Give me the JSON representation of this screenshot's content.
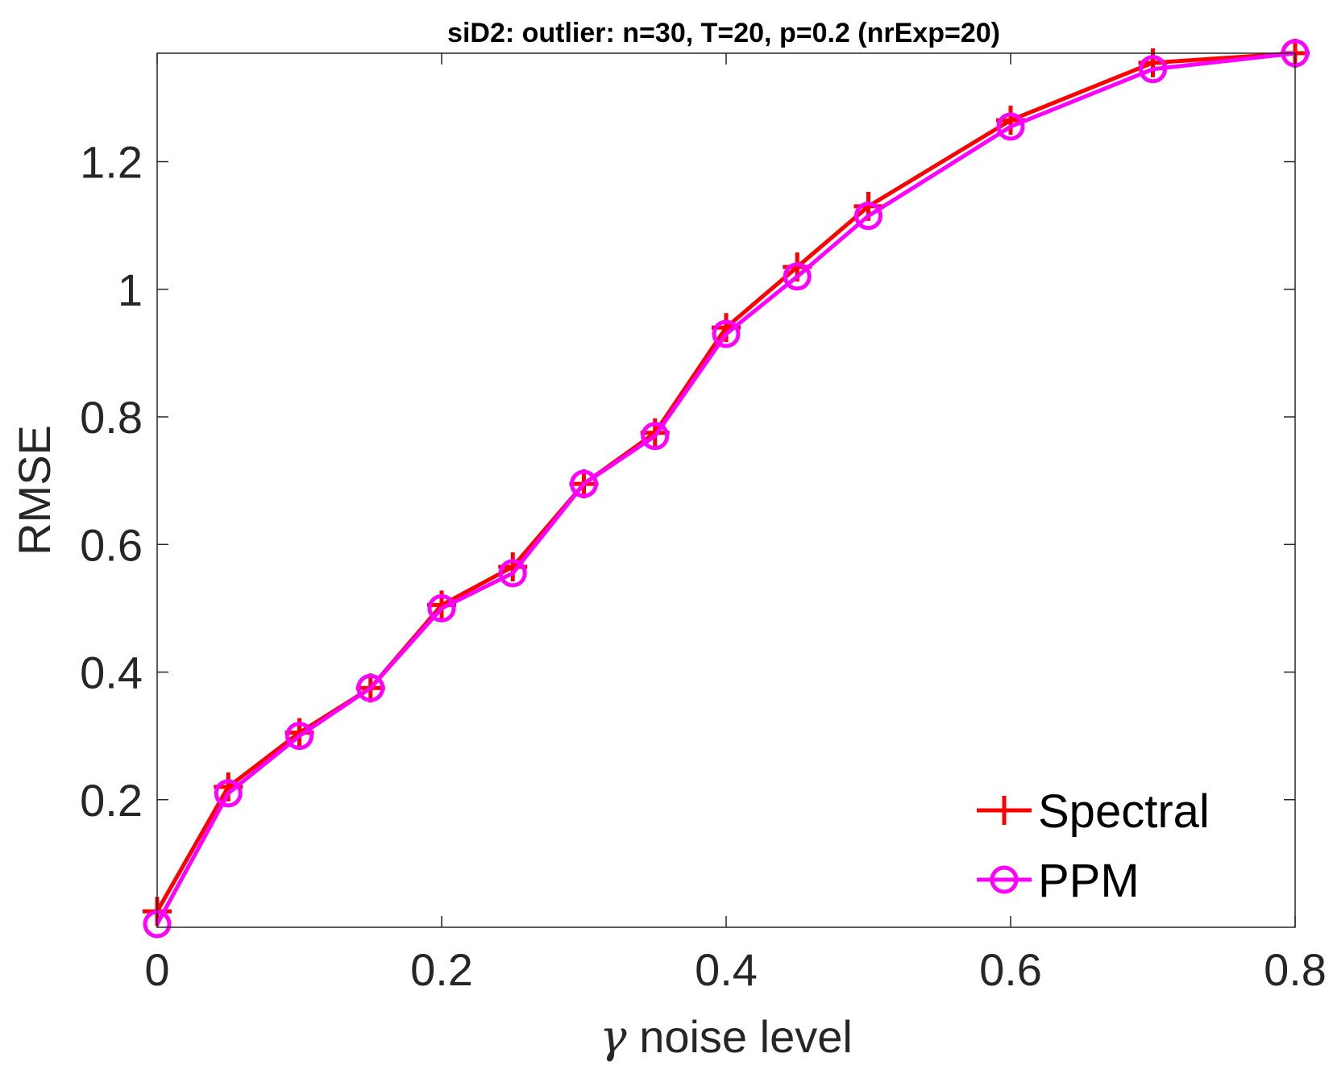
{
  "chart_data": {
    "type": "line",
    "title": "siD2: outlier: n=30, T=20, p=0.2 (nrExp=20)",
    "xlabel_symbol": "γ",
    "xlabel_text": " noise level",
    "ylabel": "RMSE",
    "xlim": [
      0,
      0.8
    ],
    "ylim": [
      0,
      1.37
    ],
    "xticks": [
      0,
      0.2,
      0.4,
      0.6,
      0.8
    ],
    "xtick_labels": [
      "0",
      "0.2",
      "0.4",
      "0.6",
      "0.8"
    ],
    "yticks": [
      0.2,
      0.4,
      0.6,
      0.8,
      1,
      1.2
    ],
    "ytick_labels": [
      "0.2",
      "0.4",
      "0.6",
      "0.8",
      "1",
      "1.2"
    ],
    "grid": false,
    "legend_position": "bottom-right",
    "x": [
      0,
      0.05,
      0.1,
      0.15,
      0.2,
      0.25,
      0.3,
      0.35,
      0.4,
      0.45,
      0.5,
      0.6,
      0.7,
      0.8
    ],
    "series": [
      {
        "name": "Spectral",
        "color": "#ff0000",
        "marker": "plus",
        "values": [
          0.025,
          0.22,
          0.305,
          0.375,
          0.505,
          0.565,
          0.695,
          0.775,
          0.94,
          1.035,
          1.13,
          1.265,
          1.355,
          1.37
        ]
      },
      {
        "name": "PPM",
        "color": "#ff00ff",
        "marker": "circle",
        "values": [
          0.005,
          0.21,
          0.3,
          0.375,
          0.5,
          0.555,
          0.695,
          0.77,
          0.93,
          1.02,
          1.115,
          1.255,
          1.345,
          1.37
        ]
      }
    ]
  }
}
